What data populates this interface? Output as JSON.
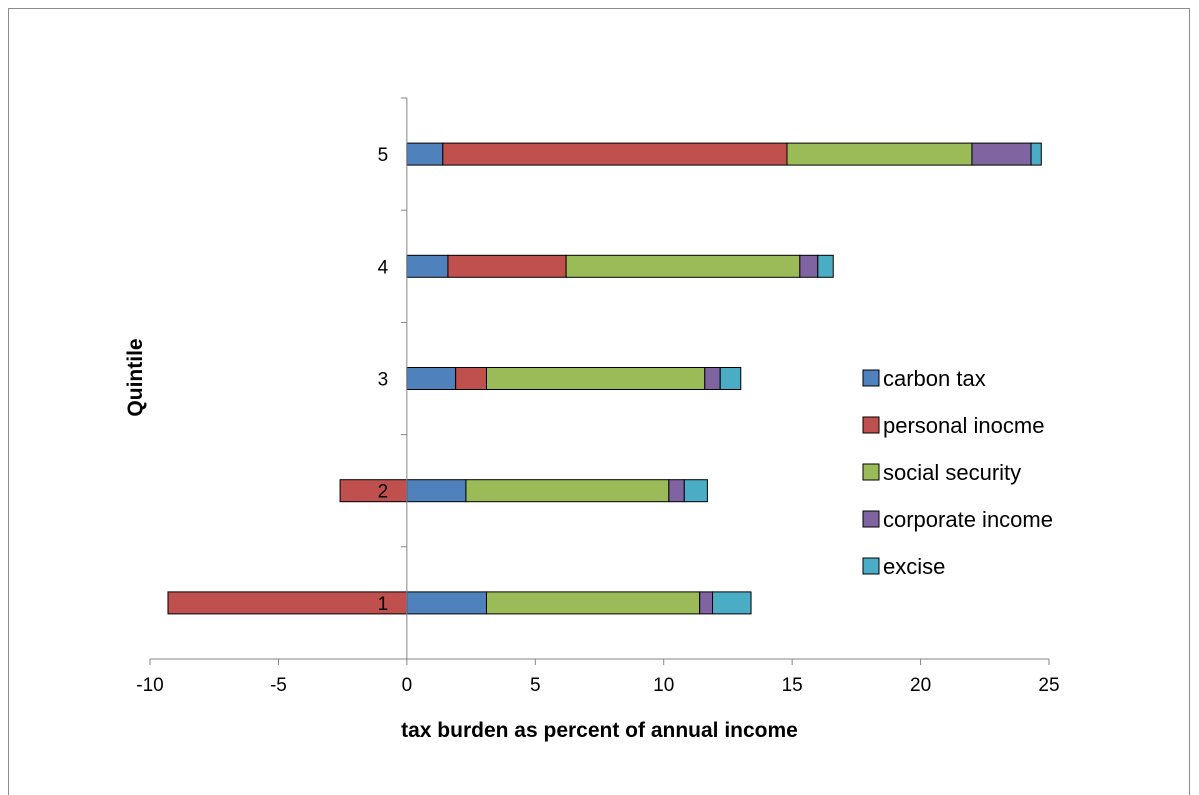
{
  "chart_data": {
    "type": "bar",
    "orientation": "horizontal",
    "stacked": true,
    "title": "",
    "xlabel": "tax burden as percent of annual income",
    "ylabel": "Quintile",
    "categories": [
      "1",
      "2",
      "3",
      "4",
      "5"
    ],
    "xlim": [
      -10,
      25
    ],
    "xticks": [
      -10,
      -5,
      0,
      5,
      10,
      15,
      20,
      25
    ],
    "grid": false,
    "legend_position": "right",
    "series": [
      {
        "name": "carbon tax",
        "color": "#4f81bd",
        "values": [
          3.1,
          2.3,
          1.9,
          1.6,
          1.4
        ]
      },
      {
        "name": "personal inocme",
        "color": "#c0504d",
        "values": [
          -9.3,
          -2.6,
          1.2,
          4.6,
          13.4
        ]
      },
      {
        "name": "social security",
        "color": "#9bbb59",
        "values": [
          8.3,
          7.9,
          8.5,
          9.1,
          7.2
        ]
      },
      {
        "name": "corporate income",
        "color": "#8064a2",
        "values": [
          0.5,
          0.6,
          0.6,
          0.7,
          2.3
        ]
      },
      {
        "name": "excise",
        "color": "#4bacc6",
        "values": [
          1.5,
          0.9,
          0.8,
          0.6,
          0.4
        ]
      }
    ]
  }
}
